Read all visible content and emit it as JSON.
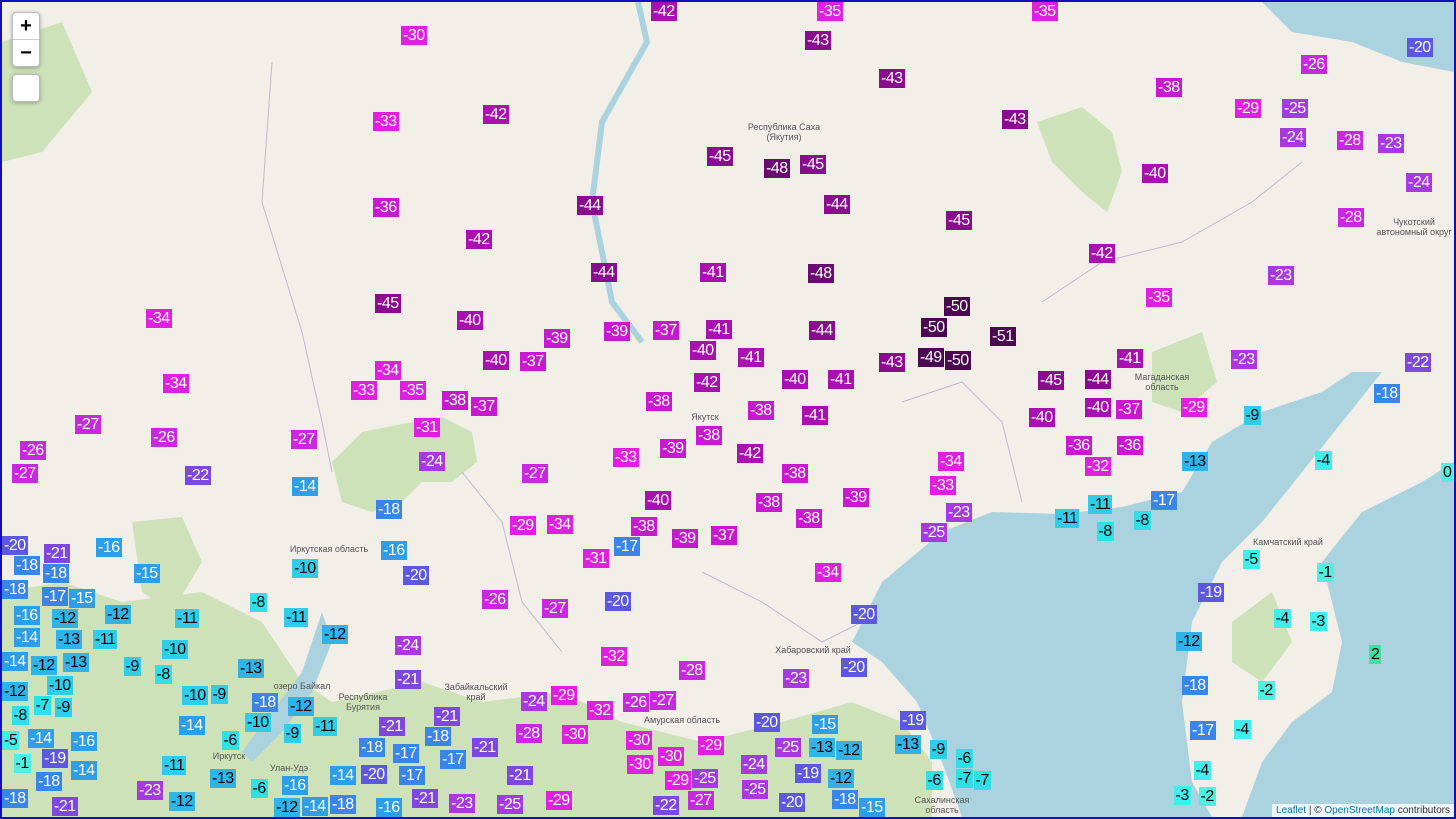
{
  "map": {
    "zoom_in_label": "+",
    "zoom_out_label": "−",
    "attribution": {
      "leaflet": "Leaflet",
      "separator": " | © ",
      "osm": "OpenStreetMap",
      "suffix": " contributors"
    },
    "colors": {
      "land": "#f2efe9",
      "water": "#aad3df",
      "forest": "#c8dfb0",
      "border": "#1010c0"
    },
    "regions": [
      "Республика Саха (Якутия)",
      "Иркутская область",
      "Забайкальский край",
      "Амурская область",
      "Хабаровский край",
      "Камчатский край",
      "Магаданская область",
      "Чукотский автономный округ",
      "Якутск",
      "Иркутск",
      "Улан-Удэ",
      "Республика Бурятия",
      "озеро Байкал",
      "Сахалинская область"
    ],
    "temperatures": [
      -42,
      -35,
      -35,
      -30,
      -43,
      -20,
      -26,
      -43,
      -38,
      -29,
      -25,
      -43,
      -33,
      -42,
      -24,
      -28,
      -23,
      -45,
      -48,
      -45,
      -40,
      -24,
      -44,
      -44,
      -36,
      -28,
      -45,
      -42,
      -42,
      -44,
      -41,
      -48,
      -23,
      -35,
      -45,
      -50,
      -34,
      -40,
      -50,
      -51,
      -39,
      -39,
      -37,
      -41,
      -44,
      -37,
      -40,
      -40,
      -41,
      -43,
      -49,
      -50,
      -23,
      -22,
      -34,
      -34,
      -33,
      -35,
      -38,
      -37,
      -42,
      -40,
      -41,
      -45,
      -44,
      -41,
      -37,
      -29,
      -18,
      -27,
      -38,
      -38,
      -38,
      -41,
      -40,
      -40,
      -9,
      -26,
      -26,
      -27,
      -31,
      -39,
      -36,
      -36,
      -42,
      -27,
      -22,
      -24,
      -33,
      -27,
      -34,
      -32,
      -13,
      -4,
      0,
      -14,
      -38,
      -33,
      -40,
      -38,
      -39,
      -11,
      -17,
      -18,
      -29,
      -34,
      -38,
      -39,
      -37,
      -38,
      -23,
      -11,
      -8,
      -8,
      -25,
      -20,
      -18,
      -21,
      -16,
      -16,
      -17,
      -31,
      -5,
      -10,
      -20,
      -18,
      -18,
      -15,
      -34,
      -1,
      -17,
      -16,
      -12,
      -15,
      -8,
      -26,
      -27,
      -20,
      -19,
      -14,
      -11,
      -11,
      -20,
      -13,
      -14,
      -13,
      -11,
      -12,
      -12,
      -24,
      -4,
      -3,
      -12,
      -10,
      -10,
      -12,
      -32,
      -9,
      -8,
      -13,
      -28,
      -20,
      2,
      -12,
      -9,
      -7,
      -21,
      -23,
      -18,
      -2,
      -10,
      -9,
      -18,
      -24,
      -29,
      -27,
      -32,
      -26,
      -11,
      -12,
      -8,
      -5,
      -21,
      -21,
      -10,
      -9,
      -14,
      -14,
      -30,
      -30,
      -28,
      -20,
      -15,
      -19,
      -17,
      -4,
      -16,
      -18,
      -18,
      -13,
      -12,
      -13,
      -9,
      -1,
      -19,
      -6,
      -16,
      -17,
      -21,
      -29,
      -25,
      -6,
      -18,
      -14,
      -17,
      -30,
      -11,
      -13,
      -6,
      -14,
      -20,
      -17,
      -21,
      -30,
      -29,
      -19,
      -12,
      -4,
      -23,
      -18,
      -14,
      -21,
      -27,
      -25,
      -6,
      -2,
      -3,
      -12,
      -12,
      -18,
      -23,
      -25,
      -29,
      -22,
      -20,
      -18,
      -7,
      -21,
      -16,
      -25,
      -24,
      -15,
      -7
    ]
  }
}
